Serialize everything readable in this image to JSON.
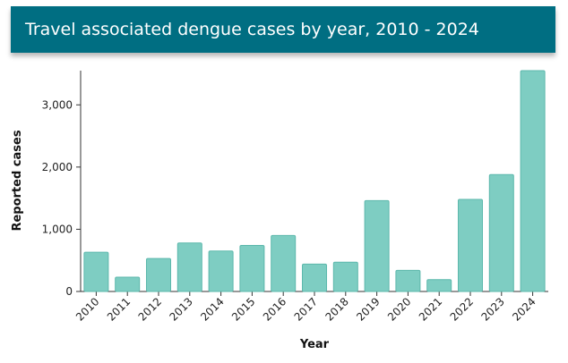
{
  "title": "Travel associated dengue cases by year, 2010 - 2024",
  "colors": {
    "header_bg": "#006e82",
    "bar": "#7ecdc2",
    "bar_stroke": "#5cb8ac"
  },
  "chart_data": {
    "type": "bar",
    "title": "Travel associated dengue cases by year, 2010 - 2024",
    "xlabel": "Year",
    "ylabel": "Reported cases",
    "categories": [
      "2010",
      "2011",
      "2012",
      "2013",
      "2014",
      "2015",
      "2016",
      "2017",
      "2018",
      "2019",
      "2020",
      "2021",
      "2022",
      "2023",
      "2024"
    ],
    "values": [
      630,
      230,
      530,
      780,
      650,
      740,
      900,
      440,
      470,
      1460,
      340,
      190,
      1480,
      1880,
      3550
    ],
    "ylim": [
      0,
      3550
    ],
    "yticks": [
      0,
      1000,
      2000,
      3000
    ],
    "ytick_labels": [
      "0",
      "1,000",
      "2,000",
      "3,000"
    ],
    "grid": false,
    "legend": "none"
  }
}
